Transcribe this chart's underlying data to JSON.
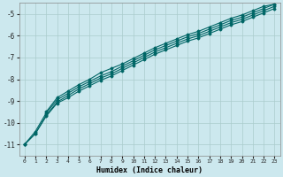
{
  "xlabel": "Humidex (Indice chaleur)",
  "bg_color": "#cce8ee",
  "grid_color": "#aacccc",
  "line_color": "#006666",
  "xlim": [
    -0.5,
    23.5
  ],
  "ylim": [
    -11.5,
    -4.5
  ],
  "xticks": [
    0,
    1,
    2,
    3,
    4,
    5,
    6,
    7,
    8,
    9,
    10,
    11,
    12,
    13,
    14,
    15,
    16,
    17,
    18,
    19,
    20,
    21,
    22,
    23
  ],
  "yticks": [
    -11,
    -10,
    -9,
    -8,
    -7,
    -6,
    -5
  ],
  "line1_x": [
    0,
    1,
    2,
    3,
    4,
    5,
    6,
    7,
    8,
    9,
    10,
    11,
    12,
    13,
    14,
    15,
    16,
    17,
    18,
    19,
    20,
    21,
    22,
    23
  ],
  "line1_y": [
    -11.0,
    -10.5,
    -9.7,
    -9.1,
    -8.85,
    -8.55,
    -8.3,
    -8.05,
    -7.85,
    -7.6,
    -7.35,
    -7.1,
    -6.85,
    -6.65,
    -6.45,
    -6.25,
    -6.1,
    -5.9,
    -5.7,
    -5.5,
    -5.35,
    -5.15,
    -4.95,
    -4.75
  ],
  "line2_x": [
    0,
    1,
    2,
    3,
    4,
    5,
    6,
    7,
    8,
    9,
    10,
    11,
    12,
    13,
    14,
    15,
    16,
    17,
    18,
    19,
    20,
    21,
    22,
    23
  ],
  "line2_y": [
    -11.0,
    -10.5,
    -9.65,
    -9.05,
    -8.75,
    -8.45,
    -8.2,
    -7.95,
    -7.75,
    -7.5,
    -7.25,
    -7.0,
    -6.75,
    -6.55,
    -6.35,
    -6.15,
    -6.0,
    -5.8,
    -5.6,
    -5.4,
    -5.25,
    -5.05,
    -4.85,
    -4.65
  ],
  "line3_x": [
    2,
    3,
    4,
    5,
    6,
    7,
    8,
    9,
    10,
    11,
    12,
    13,
    14,
    15,
    16,
    17,
    18,
    19,
    20,
    21,
    22,
    23
  ],
  "line3_y": [
    -9.5,
    -8.85,
    -8.55,
    -8.25,
    -8.0,
    -7.7,
    -7.5,
    -7.3,
    -7.05,
    -6.8,
    -6.55,
    -6.35,
    -6.15,
    -5.95,
    -5.8,
    -5.6,
    -5.4,
    -5.2,
    -5.05,
    -4.85,
    -4.65,
    -4.55
  ],
  "line4_x": [
    0,
    1,
    2,
    3,
    4,
    5,
    6,
    7,
    8,
    9,
    10,
    11,
    12,
    13,
    14,
    15,
    16,
    17,
    18,
    19,
    20,
    21,
    22,
    23
  ],
  "line4_y": [
    -11.0,
    -10.4,
    -9.55,
    -8.95,
    -8.65,
    -8.35,
    -8.1,
    -7.85,
    -7.65,
    -7.4,
    -7.15,
    -6.9,
    -6.65,
    -6.45,
    -6.25,
    -6.05,
    -5.9,
    -5.7,
    -5.5,
    -5.3,
    -5.15,
    -4.95,
    -4.75,
    -4.55
  ]
}
